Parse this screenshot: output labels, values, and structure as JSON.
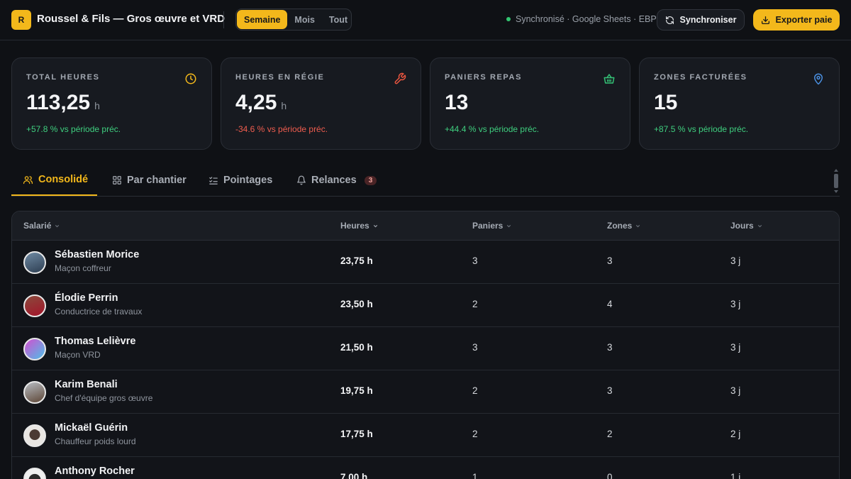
{
  "header": {
    "logo_letter": "R",
    "title": "Roussel & Fils — Gros œuvre et VRD",
    "periods": [
      {
        "label": "Semaine",
        "active": true
      },
      {
        "label": "Mois",
        "active": false
      },
      {
        "label": "Tout",
        "active": false
      }
    ],
    "sync_status": "Synchronisé · Google Sheets · EBP",
    "sync_button": "Synchroniser",
    "export_button": "Exporter paie"
  },
  "kpis": [
    {
      "label": "TOTAL HEURES",
      "value": "113,25",
      "unit": "h",
      "delta": "+57.8 % vs période préc.",
      "trend": "up",
      "icon": "clock-icon",
      "color": "#f3b81b"
    },
    {
      "label": "HEURES EN RÉGIE",
      "value": "4,25",
      "unit": "h",
      "delta": "-34.6 % vs période préc.",
      "trend": "down",
      "icon": "wrench-icon",
      "color": "#e8553f"
    },
    {
      "label": "PANIERS REPAS",
      "value": "13",
      "unit": "",
      "delta": "+44.4 % vs période préc.",
      "trend": "up",
      "icon": "basket-icon",
      "color": "#34c276"
    },
    {
      "label": "ZONES FACTURÉES",
      "value": "15",
      "unit": "",
      "delta": "+87.5 % vs période préc.",
      "trend": "up",
      "icon": "map-pin-icon",
      "color": "#4a8fe0"
    }
  ],
  "tabs": [
    {
      "label": "Consolidé",
      "icon": "users-icon",
      "active": true
    },
    {
      "label": "Par chantier",
      "icon": "grid-icon",
      "active": false
    },
    {
      "label": "Pointages",
      "icon": "checklist-icon",
      "active": false
    },
    {
      "label": "Relances",
      "icon": "bell-icon",
      "active": false,
      "badge": "3"
    }
  ],
  "table": {
    "columns": [
      "Salarié",
      "Heures",
      "Paniers",
      "Zones",
      "Jours"
    ],
    "rows": [
      {
        "name": "Sébastien Morice",
        "role": "Maçon coffreur",
        "hours": "23,75 h",
        "paniers": "3",
        "zones": "3",
        "jours": "3 j"
      },
      {
        "name": "Élodie Perrin",
        "role": "Conductrice de travaux",
        "hours": "23,50 h",
        "paniers": "2",
        "zones": "4",
        "jours": "3 j"
      },
      {
        "name": "Thomas Lelièvre",
        "role": "Maçon VRD",
        "hours": "21,50 h",
        "paniers": "3",
        "zones": "3",
        "jours": "3 j"
      },
      {
        "name": "Karim Benali",
        "role": "Chef d'équipe gros œuvre",
        "hours": "19,75 h",
        "paniers": "2",
        "zones": "3",
        "jours": "3 j"
      },
      {
        "name": "Mickaël Guérin",
        "role": "Chauffeur poids lourd",
        "hours": "17,75 h",
        "paniers": "2",
        "zones": "2",
        "jours": "2 j"
      },
      {
        "name": "Anthony Rocher",
        "role": "",
        "hours": "7,00 h",
        "paniers": "1",
        "zones": "0",
        "jours": "1 j"
      }
    ]
  }
}
